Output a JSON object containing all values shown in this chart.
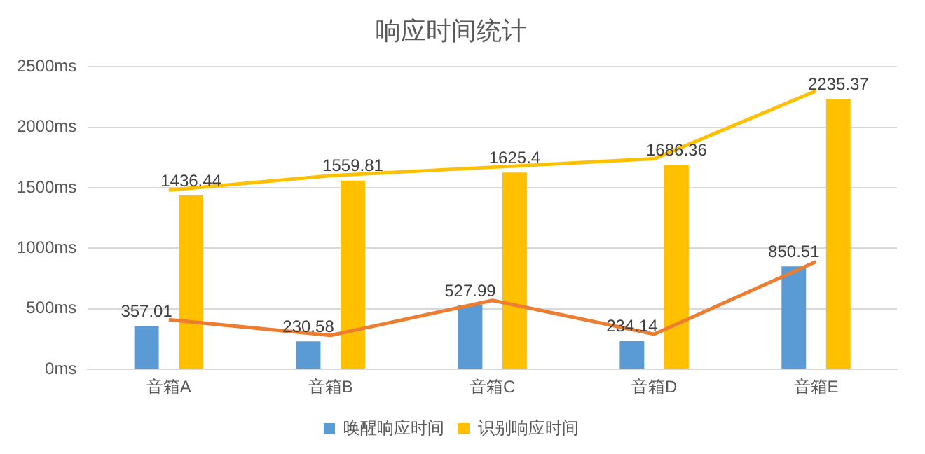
{
  "chart_data": {
    "type": "bar",
    "title": "响应时间统计",
    "categories": [
      "音箱A",
      "音箱B",
      "音箱C",
      "音箱D",
      "音箱E"
    ],
    "series": [
      {
        "name": "唤醒响应时间",
        "color": "#5b9bd5",
        "values": [
          357.01,
          230.58,
          527.99,
          234.14,
          850.51
        ],
        "value_labels": [
          "357.01",
          "230.58",
          "527.99",
          "234.14",
          "850.51"
        ]
      },
      {
        "name": "识别响应时间",
        "color": "#ffc000",
        "values": [
          1436.44,
          1559.81,
          1625.4,
          1686.36,
          2235.37
        ],
        "value_labels": [
          "1436.44",
          "1559.81",
          "1625.4",
          "1686.36",
          "2235.37"
        ]
      },
      {
        "type": "line",
        "color": "#ed7d31",
        "values": [
          410,
          280,
          570,
          290,
          890
        ]
      },
      {
        "type": "line",
        "color": "#ffc000",
        "values": [
          1480,
          1600,
          1670,
          1740,
          2300
        ]
      }
    ],
    "ylim": [
      0,
      2500
    ],
    "yticks": [
      {
        "value": 0,
        "label": "0ms"
      },
      {
        "value": 500,
        "label": "500ms"
      },
      {
        "value": 1000,
        "label": "1000ms"
      },
      {
        "value": 1500,
        "label": "1500ms"
      },
      {
        "value": 2000,
        "label": "2000ms"
      },
      {
        "value": 2500,
        "label": "2500ms"
      }
    ],
    "grid": "y",
    "legend": "bottom",
    "marker": "none",
    "line_style": "solid"
  }
}
